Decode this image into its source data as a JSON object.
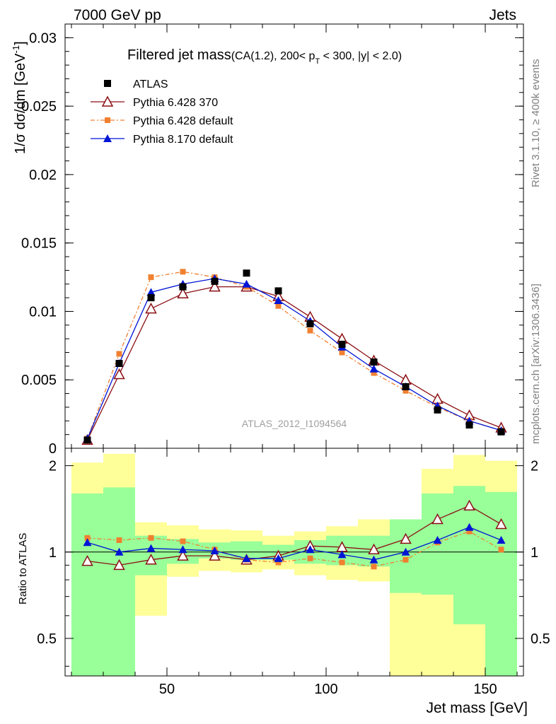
{
  "header": {
    "left": "7000 GeV pp",
    "right": "Jets"
  },
  "side_labels": {
    "rivet": "Rivet 3.1.10, ≥ 400k events",
    "mcplots": "mcplots.cern.ch [arXiv:1306.3436]"
  },
  "chart_data": [
    {
      "type": "line",
      "title_main": "Filtered jet mass",
      "title_sub": "(CA(1.2), 200< p",
      "title_sub_T": "T",
      "title_sub_end": " < 300, |y| < 2.0)",
      "ylabel": "1/σ dσ/dm [GeV",
      "ylabel_sup": "-1",
      "ylabel_end": "]",
      "watermark": "ATLAS_2012_I1094564",
      "xlim": [
        18,
        162
      ],
      "ylim": [
        0,
        0.031
      ],
      "yticks": [
        "0",
        "0.005",
        "0.01",
        "0.015",
        "0.02",
        "0.025",
        "0.03"
      ],
      "yticks_values": [
        0,
        0.005,
        0.01,
        0.015,
        0.02,
        0.025,
        0.03
      ],
      "x": [
        25,
        35,
        45,
        55,
        65,
        75,
        85,
        95,
        105,
        115,
        125,
        135,
        145,
        155
      ],
      "series": [
        {
          "name": "ATLAS",
          "color": "#000000",
          "marker": "square",
          "values": [
            0.0006,
            0.0062,
            0.011,
            0.0118,
            0.0122,
            0.0128,
            0.0115,
            0.0091,
            0.0076,
            0.0063,
            0.0045,
            0.0028,
            0.0017,
            0.0012
          ]
        },
        {
          "name": "Pythia 6.428 370",
          "color": "#8b0f14",
          "marker": "open-triangle",
          "values": [
            0.0006,
            0.0054,
            0.0102,
            0.0113,
            0.0118,
            0.0118,
            0.0111,
            0.0096,
            0.008,
            0.0064,
            0.005,
            0.0036,
            0.0024,
            0.0015
          ]
        },
        {
          "name": "Pythia 6.428 default",
          "color": "#f08030",
          "marker": "small-square",
          "dash": true,
          "values": [
            0.0007,
            0.0069,
            0.0125,
            0.0129,
            0.0125,
            0.0118,
            0.0104,
            0.0086,
            0.007,
            0.0055,
            0.0042,
            0.003,
            0.002,
            0.0013
          ]
        },
        {
          "name": "Pythia 8.170 default",
          "color": "#0015d5",
          "marker": "triangle",
          "values": [
            0.0007,
            0.0062,
            0.0114,
            0.012,
            0.0124,
            0.012,
            0.0108,
            0.0093,
            0.0074,
            0.0058,
            0.0045,
            0.0031,
            0.002,
            0.0013
          ]
        }
      ]
    },
    {
      "type": "line",
      "ylabel": "Ratio to ATLAS",
      "xlabel": "Jet mass [GeV]",
      "xlim": [
        18,
        162
      ],
      "xticks": [
        "50",
        "100",
        "150"
      ],
      "xticks_values": [
        50,
        100,
        150
      ],
      "yticks": [
        "0.5",
        "1",
        "2"
      ],
      "yticks_values": [
        0.5,
        1,
        2
      ],
      "ylim": [
        0.37,
        2.3
      ],
      "log_y": true,
      "bands": {
        "bin_edges": [
          20,
          30,
          40,
          50,
          60,
          70,
          80,
          90,
          100,
          110,
          120,
          130,
          140,
          150,
          160
        ],
        "green_low": [
          0.37,
          0.37,
          0.83,
          0.91,
          0.95,
          0.94,
          0.94,
          0.91,
          0.9,
          0.89,
          0.72,
          0.71,
          0.56,
          0.37
        ],
        "green_high": [
          1.6,
          1.68,
          1.14,
          1.11,
          1.08,
          1.09,
          1.06,
          1.1,
          1.14,
          1.14,
          1.3,
          1.6,
          1.7,
          1.62
        ],
        "yellow_low": [
          0.37,
          0.58,
          0.6,
          0.82,
          0.86,
          0.85,
          0.87,
          0.83,
          0.8,
          0.79,
          0.37,
          0.37,
          0.37,
          0.37
        ],
        "yellow_high": [
          2.05,
          2.2,
          1.27,
          1.24,
          1.2,
          1.19,
          1.14,
          1.18,
          1.23,
          1.3,
          1.28,
          1.95,
          2.18,
          2.08
        ],
        "green_color": "#99ff99",
        "yellow_color": "#ffff99"
      },
      "x": [
        25,
        35,
        45,
        55,
        65,
        75,
        85,
        95,
        105,
        115,
        125,
        135,
        145,
        155
      ],
      "series": [
        {
          "name": "Pythia 6.428 370",
          "color": "#8b0f14",
          "marker": "open-triangle",
          "values": [
            0.93,
            0.9,
            0.94,
            0.97,
            0.97,
            0.94,
            0.97,
            1.05,
            1.04,
            1.02,
            1.11,
            1.3,
            1.45,
            1.25
          ]
        },
        {
          "name": "Pythia 6.428 default",
          "color": "#f08030",
          "marker": "small-square",
          "dash": true,
          "values": [
            1.12,
            1.1,
            1.12,
            1.09,
            1.02,
            0.94,
            0.92,
            0.95,
            0.92,
            0.89,
            0.94,
            1.08,
            1.18,
            1.02
          ]
        },
        {
          "name": "Pythia 8.170 default",
          "color": "#0015d5",
          "marker": "triangle",
          "values": [
            1.08,
            1.0,
            1.03,
            1.02,
            1.01,
            0.95,
            0.95,
            1.02,
            0.98,
            0.94,
            1.0,
            1.1,
            1.22,
            1.1
          ]
        }
      ]
    }
  ]
}
